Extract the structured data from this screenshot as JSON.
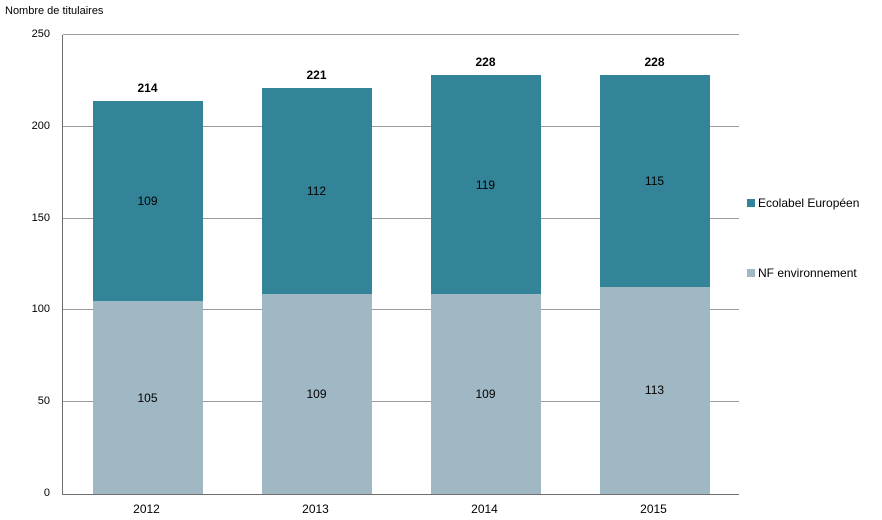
{
  "title": "Nombre de titulaires",
  "chart_data": {
    "type": "bar",
    "stacked": true,
    "title": "Nombre de titulaires",
    "categories": [
      "2012",
      "2013",
      "2014",
      "2015"
    ],
    "series": [
      {
        "name": "NF environnement",
        "color": "#a0b8c3",
        "values": [
          105,
          109,
          109,
          113
        ]
      },
      {
        "name": "Ecolabel Européen",
        "color": "#338499",
        "values": [
          109,
          112,
          119,
          115
        ]
      }
    ],
    "totals": [
      214,
      221,
      228,
      228
    ],
    "yticks": [
      0,
      50,
      100,
      150,
      200,
      250
    ],
    "ylim": [
      0,
      250
    ],
    "xlabel": "",
    "ylabel": "Nombre de titulaires",
    "grid": "horizontal",
    "legend_position": "right"
  },
  "legend": {
    "items": [
      {
        "label": "Ecolabel Européen",
        "color": "#338499"
      },
      {
        "label": "NF environnement",
        "color": "#a0b8c3"
      }
    ]
  },
  "colors": {
    "ecolabel": "#338499",
    "nf": "#a0b8c3",
    "gridline": "#9b9b9b",
    "axis": "#6e6e6e",
    "background": "#ffffff",
    "text": "#000000"
  }
}
